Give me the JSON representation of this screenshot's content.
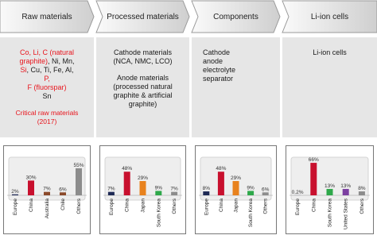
{
  "columns": [
    {
      "header": "Raw materials",
      "blocks": [
        [
          [
            {
              "text": "Co, Li, C (natural",
              "color": "#e8141c"
            }
          ],
          [
            {
              "text": "graphite)",
              "color": "#e8141c"
            },
            {
              "text": ", Ni, Mn,"
            }
          ],
          [
            {
              "text": "Si",
              "color": "#e8141c"
            },
            {
              "text": ", Cu, Ti, Fe, Al,"
            }
          ],
          [
            {
              "text": "P,",
              "color": "#e8141c"
            }
          ],
          [
            {
              "text": "F (fluorspar)",
              "color": "#e8141c"
            }
          ],
          [
            {
              "text": "Sn"
            }
          ]
        ],
        [
          [
            {
              "text": "Critical raw materials",
              "color": "#e8141c"
            }
          ],
          [
            {
              "text": "(2017)",
              "color": "#e8141c"
            }
          ]
        ]
      ],
      "chart": {
        "type": "bar",
        "categories": [
          "Europe",
          "China",
          "Australia",
          "Chile",
          "Others"
        ],
        "values": [
          2,
          30,
          7,
          6,
          55
        ],
        "value_labels": [
          "2%",
          "30%",
          "7%",
          "6%",
          "55%"
        ],
        "colors": [
          "#1f2a55",
          "#c8102e",
          "#8b4a2b",
          "#8b4a2b",
          "#8c8c8c"
        ]
      }
    },
    {
      "header": "Processed materials",
      "blocks": [
        [
          [
            {
              "text": "Cathode materials"
            }
          ],
          [
            {
              "text": "(NCA, NMC, LCO)"
            }
          ]
        ],
        [
          [
            {
              "text": "Anode materials"
            }
          ],
          [
            {
              "text": "(processed natural"
            }
          ],
          [
            {
              "text": "graphite & artificial"
            }
          ],
          [
            {
              "text": "graphite)"
            }
          ]
        ]
      ],
      "chart": {
        "type": "bar",
        "categories": [
          "Europe",
          "China",
          "Japan",
          "South Korea",
          "Others"
        ],
        "values": [
          7,
          48,
          29,
          9,
          7
        ],
        "value_labels": [
          "7%",
          "48%",
          "29%",
          "9%",
          "7%"
        ],
        "colors": [
          "#1f2a55",
          "#c8102e",
          "#e8821e",
          "#2ea84a",
          "#8c8c8c"
        ]
      }
    },
    {
      "header": "Components",
      "blocks": [
        [
          [
            {
              "text": "Cathode"
            }
          ],
          [
            {
              "text": "anode"
            }
          ],
          [
            {
              "text": "electrolyte"
            }
          ],
          [
            {
              "text": "separator"
            }
          ]
        ]
      ],
      "chart": {
        "type": "bar",
        "categories": [
          "Europe",
          "China",
          "Japan",
          "South Korea",
          "Others"
        ],
        "values": [
          8,
          48,
          29,
          9,
          6
        ],
        "value_labels": [
          "8%",
          "48%",
          "29%",
          "9%",
          "6%"
        ],
        "colors": [
          "#1f2a55",
          "#c8102e",
          "#e8821e",
          "#2ea84a",
          "#8c8c8c"
        ]
      }
    },
    {
      "header": "Li-ion cells",
      "blocks": [
        [
          [
            {
              "text": "Li-ion cells"
            }
          ]
        ]
      ],
      "chart": {
        "type": "bar",
        "categories": [
          "Europe",
          "China",
          "South Korea",
          "United States",
          "Others"
        ],
        "values": [
          0.2,
          66,
          13,
          13,
          8
        ],
        "value_labels": [
          "0.2%",
          "66%",
          "13%",
          "13%",
          "8%"
        ],
        "colors": [
          "#1f2a55",
          "#c8102e",
          "#2ea84a",
          "#7b3fa0",
          "#8c8c8c"
        ]
      }
    }
  ]
}
